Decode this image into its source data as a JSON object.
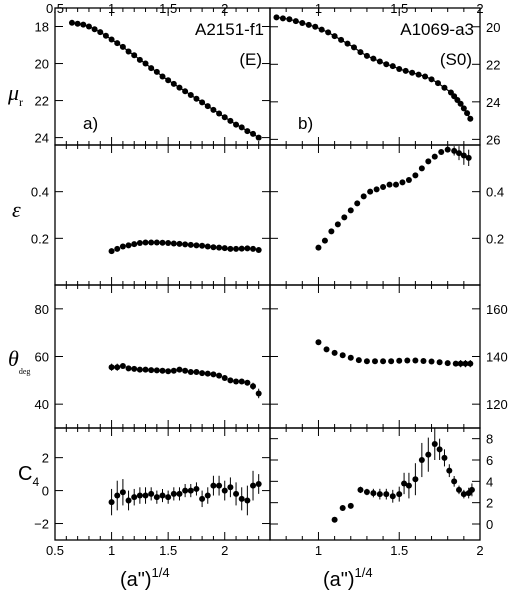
{
  "figure": {
    "y_titles": [
      "μ",
      "ε",
      "θ",
      "C"
    ],
    "y_title_subscripts": [
      "r",
      "",
      "deg",
      "4"
    ],
    "x_title": "(a\")",
    "x_title_sup": "1/4"
  },
  "chart_data": [
    {
      "type": "scatter",
      "panel": "a",
      "row": 0,
      "col": 0,
      "label": "a)",
      "object": "A2151-f1",
      "morph": "(E)",
      "xlim": [
        0.5,
        2.4
      ],
      "ylim": [
        24.4,
        17.0
      ],
      "y_axis_side": "left",
      "x_ticks": [
        0.5,
        1,
        1.5,
        2
      ],
      "x_tick_labels": [
        "0.5",
        "1",
        "1.5",
        "2"
      ],
      "y_ticks": [
        18,
        20,
        22,
        24
      ],
      "y_tick_labels": [
        "18",
        "20",
        "22",
        "24"
      ],
      "has_curve": true,
      "x": [
        0.65,
        0.7,
        0.75,
        0.8,
        0.85,
        0.9,
        0.95,
        1.0,
        1.05,
        1.1,
        1.15,
        1.2,
        1.25,
        1.3,
        1.35,
        1.4,
        1.45,
        1.5,
        1.55,
        1.6,
        1.65,
        1.7,
        1.75,
        1.8,
        1.85,
        1.9,
        1.95,
        2.0,
        2.05,
        2.1,
        2.15,
        2.2,
        2.25,
        2.3
      ],
      "y": [
        17.8,
        17.85,
        17.9,
        18.0,
        18.15,
        18.3,
        18.5,
        18.7,
        18.9,
        19.1,
        19.35,
        19.55,
        19.8,
        20.0,
        20.25,
        20.45,
        20.7,
        20.9,
        21.1,
        21.3,
        21.5,
        21.7,
        21.9,
        22.1,
        22.3,
        22.5,
        22.7,
        22.9,
        23.1,
        23.3,
        23.45,
        23.65,
        23.8,
        24.0
      ],
      "yerr": []
    },
    {
      "type": "scatter",
      "panel": "b",
      "row": 0,
      "col": 1,
      "label": "b)",
      "object": "A1069-a3",
      "morph": "(S0)",
      "xlim": [
        0.7,
        2.0
      ],
      "ylim": [
        26.3,
        19.0
      ],
      "y_axis_side": "right",
      "x_ticks": [
        1,
        1.5,
        2
      ],
      "x_tick_labels": [
        "1",
        "1.5",
        "2"
      ],
      "y_ticks": [
        20,
        22,
        24,
        26
      ],
      "y_tick_labels": [
        "20",
        "22",
        "24",
        "26"
      ],
      "has_curve": true,
      "x": [
        0.74,
        0.78,
        0.82,
        0.86,
        0.9,
        0.94,
        0.98,
        1.02,
        1.06,
        1.1,
        1.14,
        1.18,
        1.22,
        1.26,
        1.3,
        1.34,
        1.38,
        1.42,
        1.46,
        1.5,
        1.54,
        1.58,
        1.62,
        1.66,
        1.7,
        1.74,
        1.78,
        1.82,
        1.84,
        1.86,
        1.88,
        1.9,
        1.92,
        1.94
      ],
      "y": [
        19.5,
        19.55,
        19.6,
        19.7,
        19.8,
        19.9,
        20.0,
        20.15,
        20.3,
        20.5,
        20.7,
        20.9,
        21.1,
        21.35,
        21.55,
        21.7,
        21.85,
        22.0,
        22.1,
        22.25,
        22.35,
        22.45,
        22.55,
        22.65,
        22.8,
        23.0,
        23.25,
        23.5,
        23.7,
        23.9,
        24.1,
        24.35,
        24.6,
        24.9
      ],
      "yerr": []
    },
    {
      "type": "scatter",
      "panel": "ellipticity-left",
      "row": 1,
      "col": 0,
      "xlim": [
        0.5,
        2.4
      ],
      "ylim": [
        0.0,
        0.6
      ],
      "y_axis_side": "left",
      "x_ticks": [
        0.5,
        1,
        1.5,
        2
      ],
      "x_tick_labels": [],
      "y_ticks": [
        0.2,
        0.4
      ],
      "y_tick_labels": [
        "0.2",
        "0.4"
      ],
      "has_curve": false,
      "x": [
        1.0,
        1.05,
        1.1,
        1.15,
        1.2,
        1.25,
        1.3,
        1.35,
        1.4,
        1.45,
        1.5,
        1.55,
        1.6,
        1.65,
        1.7,
        1.75,
        1.8,
        1.85,
        1.9,
        1.95,
        2.0,
        2.05,
        2.1,
        2.15,
        2.2,
        2.25,
        2.3
      ],
      "y": [
        0.145,
        0.155,
        0.165,
        0.17,
        0.175,
        0.18,
        0.182,
        0.182,
        0.182,
        0.181,
        0.18,
        0.178,
        0.176,
        0.174,
        0.172,
        0.17,
        0.168,
        0.165,
        0.162,
        0.16,
        0.158,
        0.155,
        0.155,
        0.156,
        0.157,
        0.155,
        0.15
      ],
      "yerr": [
        0.012,
        0,
        0,
        0,
        0,
        0,
        0,
        0,
        0,
        0,
        0,
        0,
        0,
        0,
        0,
        0,
        0,
        0,
        0,
        0,
        0,
        0,
        0,
        0,
        0,
        0,
        0
      ]
    },
    {
      "type": "scatter",
      "panel": "ellipticity-right",
      "row": 1,
      "col": 1,
      "xlim": [
        0.7,
        2.0
      ],
      "ylim": [
        0.0,
        0.6
      ],
      "y_axis_side": "right",
      "x_ticks": [
        1,
        1.5,
        2
      ],
      "x_tick_labels": [],
      "y_ticks": [
        0.2,
        0.4
      ],
      "y_tick_labels": [
        "0.2",
        "0.4"
      ],
      "has_curve": false,
      "x": [
        1.0,
        1.04,
        1.08,
        1.12,
        1.16,
        1.2,
        1.24,
        1.28,
        1.32,
        1.36,
        1.4,
        1.44,
        1.48,
        1.52,
        1.56,
        1.6,
        1.64,
        1.68,
        1.72,
        1.76,
        1.8,
        1.84,
        1.87,
        1.9,
        1.93
      ],
      "y": [
        0.16,
        0.19,
        0.23,
        0.26,
        0.29,
        0.32,
        0.35,
        0.38,
        0.4,
        0.41,
        0.42,
        0.43,
        0.43,
        0.44,
        0.45,
        0.47,
        0.5,
        0.53,
        0.55,
        0.57,
        0.58,
        0.575,
        0.565,
        0.555,
        0.545
      ],
      "yerr": [
        0,
        0,
        0,
        0,
        0,
        0,
        0,
        0,
        0,
        0,
        0,
        0,
        0,
        0,
        0,
        0,
        0,
        0,
        0,
        0,
        0,
        0.02,
        0.03,
        0.04,
        0.035
      ]
    },
    {
      "type": "scatter",
      "panel": "pa-left",
      "row": 2,
      "col": 0,
      "xlim": [
        0.5,
        2.4
      ],
      "ylim": [
        30,
        90
      ],
      "y_axis_side": "left",
      "x_ticks": [
        0.5,
        1,
        1.5,
        2
      ],
      "x_tick_labels": [],
      "y_ticks": [
        40,
        60,
        80
      ],
      "y_tick_labels": [
        "40",
        "60",
        "80"
      ],
      "has_curve": false,
      "x": [
        1.0,
        1.05,
        1.1,
        1.15,
        1.2,
        1.25,
        1.3,
        1.35,
        1.4,
        1.45,
        1.5,
        1.55,
        1.6,
        1.65,
        1.7,
        1.75,
        1.8,
        1.85,
        1.9,
        1.95,
        2.0,
        2.05,
        2.1,
        2.15,
        2.2,
        2.25,
        2.3
      ],
      "y": [
        55.5,
        55.5,
        56,
        55,
        54.8,
        54.5,
        54.5,
        54.3,
        54.2,
        54,
        53.8,
        54,
        54.5,
        54,
        53.5,
        53.5,
        53,
        52.8,
        52.5,
        52,
        51,
        50,
        49.5,
        49.5,
        49,
        47.5,
        44.5
      ],
      "yerr": [
        1.5,
        1.5,
        1.0,
        0,
        0,
        0,
        0,
        0,
        0,
        0,
        0,
        0,
        0,
        0,
        0,
        0,
        0,
        0,
        0,
        0,
        0,
        0,
        0,
        0,
        0,
        1.5,
        2.0
      ]
    },
    {
      "type": "scatter",
      "panel": "pa-right",
      "row": 2,
      "col": 1,
      "xlim": [
        0.7,
        2.0
      ],
      "ylim": [
        110,
        170
      ],
      "y_axis_side": "right",
      "x_ticks": [
        1,
        1.5,
        2
      ],
      "x_tick_labels": [],
      "y_ticks": [
        120,
        140,
        160
      ],
      "y_tick_labels": [
        "120",
        "140",
        "160"
      ],
      "has_curve": false,
      "x": [
        1.0,
        1.05,
        1.1,
        1.15,
        1.2,
        1.25,
        1.3,
        1.35,
        1.4,
        1.45,
        1.5,
        1.55,
        1.6,
        1.65,
        1.7,
        1.75,
        1.8,
        1.85,
        1.88,
        1.91,
        1.94
      ],
      "y": [
        146,
        143,
        141.5,
        140.5,
        139.5,
        138.5,
        138,
        138,
        138,
        138,
        138.2,
        138.3,
        138.3,
        138.1,
        137.9,
        137.6,
        137.2,
        137,
        137,
        137,
        137
      ],
      "yerr": [
        0,
        0,
        0,
        0,
        0,
        0,
        0,
        0,
        0,
        0,
        0,
        0,
        0,
        0,
        0,
        0,
        0,
        0,
        1.5,
        1.5,
        1.5
      ]
    },
    {
      "type": "scatter",
      "panel": "c4-left",
      "row": 3,
      "col": 0,
      "xlim": [
        0.5,
        2.4
      ],
      "ylim": [
        -3.0,
        3.8
      ],
      "y_axis_side": "left",
      "x_ticks": [
        0.5,
        1,
        1.5,
        2
      ],
      "x_tick_labels": [
        "0.5",
        "1",
        "1.5",
        "2"
      ],
      "y_ticks": [
        -2,
        0,
        2
      ],
      "y_tick_labels": [
        "−2",
        "0",
        "2"
      ],
      "has_curve": false,
      "x": [
        1.0,
        1.05,
        1.1,
        1.15,
        1.2,
        1.25,
        1.3,
        1.35,
        1.4,
        1.45,
        1.5,
        1.55,
        1.6,
        1.65,
        1.7,
        1.75,
        1.8,
        1.85,
        1.9,
        1.95,
        2.0,
        2.05,
        2.1,
        2.15,
        2.2,
        2.25,
        2.3
      ],
      "y": [
        -0.7,
        -0.3,
        -0.1,
        -0.6,
        -0.4,
        -0.3,
        -0.3,
        -0.2,
        -0.4,
        -0.3,
        -0.4,
        -0.2,
        -0.2,
        0,
        0,
        0.1,
        -0.5,
        -0.3,
        0.3,
        0.3,
        0,
        0.2,
        -0.2,
        -0.5,
        -0.6,
        0.3,
        0.4
      ],
      "yerr": [
        0.8,
        0.9,
        0.8,
        0.6,
        0.5,
        0.5,
        0.5,
        0.4,
        0.4,
        0.4,
        0.4,
        0.4,
        0.4,
        0.4,
        0.4,
        0.4,
        0.5,
        0.5,
        0.6,
        0.6,
        0.6,
        0.6,
        0.7,
        0.7,
        0.9,
        0.9,
        0.6
      ]
    },
    {
      "type": "scatter",
      "panel": "c4-right",
      "row": 3,
      "col": 1,
      "xlim": [
        0.7,
        2.0
      ],
      "ylim": [
        -1.5,
        9.0
      ],
      "y_axis_side": "right",
      "x_ticks": [
        1,
        1.5,
        2
      ],
      "x_tick_labels": [
        "1",
        "1.5",
        "2"
      ],
      "y_ticks": [
        0,
        2,
        4,
        6,
        8
      ],
      "y_tick_labels": [
        "0",
        "2",
        "4",
        "6",
        "8"
      ],
      "has_curve": false,
      "x": [
        1.1,
        1.15,
        1.2,
        1.26,
        1.3,
        1.34,
        1.38,
        1.42,
        1.46,
        1.5,
        1.53,
        1.56,
        1.6,
        1.64,
        1.68,
        1.72,
        1.75,
        1.78,
        1.81,
        1.84,
        1.87,
        1.9,
        1.93,
        1.95
      ],
      "y": [
        0.4,
        1.5,
        1.7,
        3.2,
        3.0,
        2.9,
        2.8,
        2.8,
        2.6,
        2.8,
        3.8,
        3.6,
        4.2,
        6.0,
        6.5,
        7.5,
        7.0,
        6.2,
        5.0,
        4.0,
        3.2,
        2.8,
        2.9,
        3.2
      ],
      "yerr": [
        0,
        0,
        0,
        0.3,
        0.3,
        0.4,
        0.5,
        0.5,
        0.6,
        0.7,
        1.0,
        1.2,
        1.5,
        1.6,
        1.6,
        1.5,
        1.0,
        0.8,
        0.6,
        0.5,
        0.4,
        0.4,
        0.5,
        0.6
      ]
    }
  ]
}
